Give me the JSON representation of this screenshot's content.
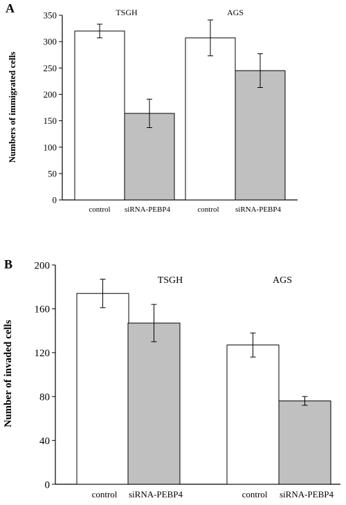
{
  "chart_data": [
    {
      "type": "bar",
      "panel_label": "A",
      "ylabel": "Numbers of immigrated cells",
      "ylim": [
        0,
        350
      ],
      "yticks": [
        0,
        50,
        100,
        150,
        200,
        250,
        300,
        350
      ],
      "groups": [
        {
          "name": "TSGH",
          "bars": [
            {
              "category": "control",
              "value": 320,
              "err": 13,
              "fill": "#ffffff"
            },
            {
              "category": "siRNA-PEBP4",
              "value": 164,
              "err": 27,
              "fill": "#c0c0c0"
            }
          ]
        },
        {
          "name": "AGS",
          "bars": [
            {
              "category": "control",
              "value": 307,
              "err": 34,
              "fill": "#ffffff"
            },
            {
              "category": "siRNA-PEBP4",
              "value": 245,
              "err": 32,
              "fill": "#c0c0c0"
            }
          ]
        }
      ]
    },
    {
      "type": "bar",
      "panel_label": "B",
      "ylabel": "Number of invaded cells",
      "ylim": [
        0,
        200
      ],
      "yticks": [
        0,
        40,
        80,
        120,
        160,
        200
      ],
      "groups": [
        {
          "name": "TSGH",
          "bars": [
            {
              "category": "control",
              "value": 174,
              "err": 13,
              "fill": "#ffffff"
            },
            {
              "category": "siRNA-PEBP4",
              "value": 147,
              "err": 17,
              "fill": "#c0c0c0"
            }
          ]
        },
        {
          "name": "AGS",
          "bars": [
            {
              "category": "control",
              "value": 127,
              "err": 11,
              "fill": "#ffffff"
            },
            {
              "category": "siRNA-PEBP4",
              "value": 76,
              "err": 4,
              "fill": "#c0c0c0"
            }
          ]
        }
      ]
    }
  ]
}
